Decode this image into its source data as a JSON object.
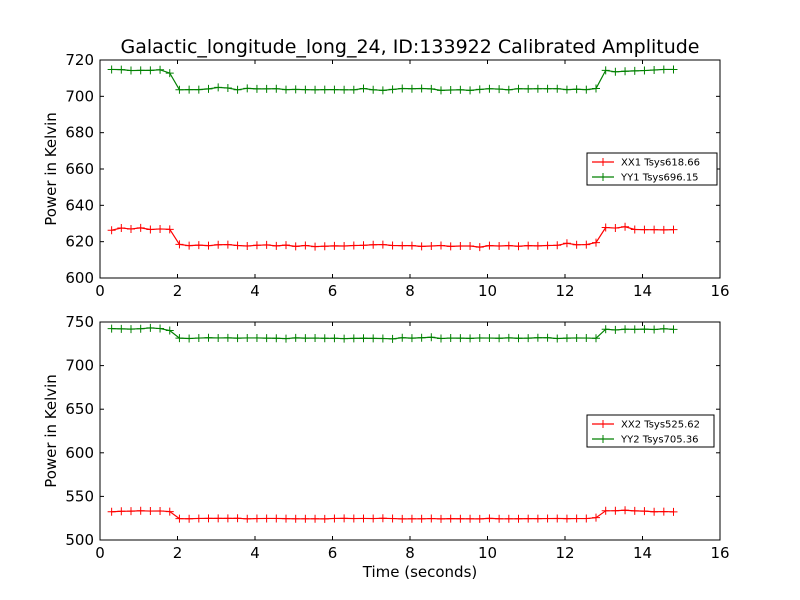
{
  "title": "Galactic_longitude_long_24, ID:133922 Calibrated Amplitude",
  "chart_data": [
    {
      "type": "line",
      "ylabel": "Power in Kelvin",
      "xlabel": "",
      "xlim": [
        0,
        16
      ],
      "ylim": [
        600,
        720
      ],
      "xticks": [
        "0",
        "2",
        "4",
        "6",
        "8",
        "10",
        "12",
        "14",
        "16"
      ],
      "yticks": [
        "600",
        "620",
        "640",
        "660",
        "680",
        "700",
        "720"
      ],
      "legend_position": "center-right",
      "x": [
        0.3,
        0.55,
        0.8,
        1.05,
        1.3,
        1.55,
        1.8,
        2.05,
        2.3,
        2.55,
        2.8,
        3.05,
        3.3,
        3.55,
        3.8,
        4.05,
        4.3,
        4.55,
        4.8,
        5.05,
        5.3,
        5.55,
        5.8,
        6.05,
        6.3,
        6.55,
        6.8,
        7.05,
        7.3,
        7.55,
        7.8,
        8.05,
        8.3,
        8.55,
        8.8,
        9.05,
        9.3,
        9.55,
        9.8,
        10.05,
        10.3,
        10.55,
        10.8,
        11.05,
        11.3,
        11.55,
        11.8,
        12.05,
        12.3,
        12.55,
        12.8,
        13.05,
        13.3,
        13.55,
        13.8,
        14.05,
        14.3,
        14.55,
        14.8
      ],
      "series": [
        {
          "name": "XX1 Tsys618.66",
          "color": "#ff0000",
          "values": [
            626.3,
            627.5,
            627.0,
            627.6,
            626.7,
            627.0,
            626.8,
            618.5,
            617.8,
            618.1,
            617.8,
            618.3,
            618.4,
            617.9,
            617.6,
            618.0,
            618.2,
            617.7,
            618.1,
            617.4,
            617.9,
            617.3,
            617.5,
            617.7,
            617.6,
            617.9,
            618.0,
            618.3,
            618.4,
            617.9,
            617.8,
            617.8,
            617.4,
            617.6,
            617.9,
            617.4,
            617.6,
            617.6,
            617.0,
            617.8,
            617.6,
            617.8,
            617.5,
            617.8,
            617.7,
            617.9,
            618.0,
            619.1,
            618.3,
            618.4,
            619.5,
            627.8,
            627.5,
            628.2,
            626.7,
            626.6,
            626.6,
            626.5,
            626.6
          ]
        },
        {
          "name": "YY1 Tsys696.15",
          "color": "#008000",
          "values": [
            714.8,
            714.7,
            714.2,
            714.3,
            714.3,
            714.6,
            712.8,
            703.6,
            703.7,
            703.7,
            704.1,
            704.9,
            704.6,
            703.6,
            704.4,
            704.1,
            704.1,
            704.2,
            703.7,
            703.8,
            703.7,
            703.6,
            703.7,
            703.7,
            703.6,
            703.6,
            704.3,
            703.6,
            703.3,
            703.8,
            704.3,
            704.2,
            704.3,
            704.1,
            703.3,
            703.5,
            703.6,
            703.3,
            703.8,
            704.2,
            704.0,
            703.6,
            704.2,
            704.1,
            704.2,
            704.2,
            704.2,
            703.7,
            703.9,
            703.7,
            704.3,
            714.3,
            713.5,
            713.8,
            714.0,
            714.2,
            714.5,
            714.8,
            714.8
          ]
        }
      ]
    },
    {
      "type": "line",
      "ylabel": "Power in Kelvin",
      "xlabel": "Time (seconds)",
      "xlim": [
        0,
        16
      ],
      "ylim": [
        500,
        750
      ],
      "xticks": [
        "0",
        "2",
        "4",
        "6",
        "8",
        "10",
        "12",
        "14",
        "16"
      ],
      "yticks": [
        "500",
        "550",
        "600",
        "650",
        "700",
        "750"
      ],
      "legend_position": "center-right",
      "x": [
        0.3,
        0.55,
        0.8,
        1.05,
        1.3,
        1.55,
        1.8,
        2.05,
        2.3,
        2.55,
        2.8,
        3.05,
        3.3,
        3.55,
        3.8,
        4.05,
        4.3,
        4.55,
        4.8,
        5.05,
        5.3,
        5.55,
        5.8,
        6.05,
        6.3,
        6.55,
        6.8,
        7.05,
        7.3,
        7.55,
        7.8,
        8.05,
        8.3,
        8.55,
        8.8,
        9.05,
        9.3,
        9.55,
        9.8,
        10.05,
        10.3,
        10.55,
        10.8,
        11.05,
        11.3,
        11.55,
        11.8,
        12.05,
        12.3,
        12.55,
        12.8,
        13.05,
        13.3,
        13.55,
        13.8,
        14.05,
        14.3,
        14.55,
        14.8
      ],
      "series": [
        {
          "name": "XX2 Tsys525.62",
          "color": "#ff0000",
          "values": [
            532.4,
            532.9,
            533.1,
            533.5,
            533.2,
            533.3,
            532.6,
            524.5,
            524.4,
            524.7,
            524.8,
            524.8,
            524.8,
            524.9,
            524.3,
            524.6,
            524.7,
            524.7,
            524.5,
            524.3,
            524.3,
            524.3,
            524.2,
            524.7,
            524.8,
            524.6,
            524.7,
            524.6,
            524.9,
            524.6,
            524.2,
            524.3,
            524.3,
            524.6,
            524.2,
            524.5,
            524.4,
            524.3,
            524.2,
            524.8,
            524.4,
            524.3,
            524.4,
            524.5,
            524.5,
            524.6,
            524.7,
            524.5,
            524.6,
            524.6,
            525.6,
            533.5,
            533.6,
            534.1,
            533.4,
            533.1,
            532.4,
            532.6,
            532.3
          ]
        },
        {
          "name": "YY2 Tsys705.36",
          "color": "#008000",
          "values": [
            742.4,
            742.1,
            741.9,
            742.3,
            743.2,
            742.5,
            740.2,
            731.5,
            731.1,
            731.6,
            731.9,
            731.7,
            731.8,
            731.5,
            731.7,
            731.7,
            731.5,
            731.4,
            731.0,
            731.8,
            731.5,
            731.6,
            731.3,
            731.3,
            731.0,
            731.2,
            731.4,
            731.2,
            731.1,
            730.7,
            731.9,
            731.5,
            731.9,
            732.5,
            731.1,
            731.6,
            731.5,
            731.2,
            731.7,
            731.6,
            731.4,
            731.8,
            731.4,
            731.5,
            731.9,
            731.9,
            731.1,
            731.5,
            731.7,
            731.6,
            731.3,
            741.7,
            740.9,
            741.7,
            741.6,
            741.8,
            741.4,
            742.2,
            741.6
          ]
        }
      ]
    }
  ]
}
